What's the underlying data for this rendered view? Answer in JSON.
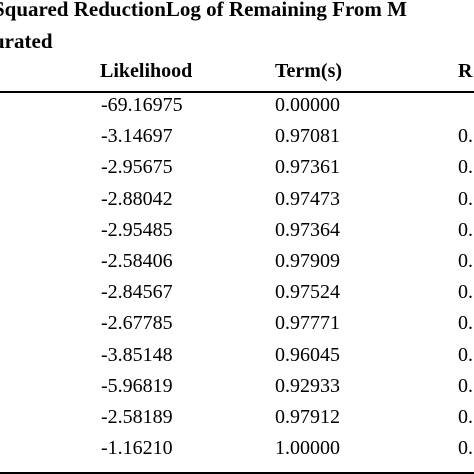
{
  "header": {
    "line1": "Squared ReductionLog of Remaining From M",
    "line2": "urated"
  },
  "columns": {
    "likelihood": "Likelihood",
    "terms": "Term(s)",
    "r": "R"
  },
  "rows": [
    {
      "likelihood": "-69.16975",
      "terms": "0.00000",
      "r": ""
    },
    {
      "likelihood": "-3.14697",
      "terms": "0.97081",
      "r": "0."
    },
    {
      "likelihood": "-2.95675",
      "terms": "0.97361",
      "r": "0."
    },
    {
      "likelihood": "-2.88042",
      "terms": "0.97473",
      "r": "0."
    },
    {
      "likelihood": "-2.95485",
      "terms": "0.97364",
      "r": "0."
    },
    {
      "likelihood": "-2.58406",
      "terms": "0.97909",
      "r": "0."
    },
    {
      "likelihood": "-2.84567",
      "terms": "0.97524",
      "r": "0."
    },
    {
      "likelihood": "-2.67785",
      "terms": "0.97771",
      "r": "0."
    },
    {
      "likelihood": "-3.85148",
      "terms": "0.96045",
      "r": "0."
    },
    {
      "likelihood": "-5.96819",
      "terms": "0.92933",
      "r": "0."
    },
    {
      "likelihood": "-2.58189",
      "terms": "0.97912",
      "r": "0."
    },
    {
      "likelihood": "-1.16210",
      "terms": "1.00000",
      "r": "0."
    }
  ]
}
